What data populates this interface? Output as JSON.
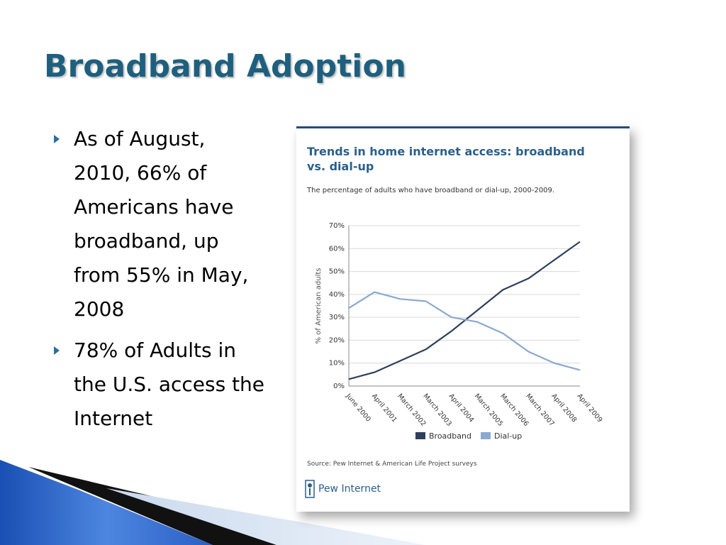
{
  "slide": {
    "title": "Broadband Adoption",
    "bullets": [
      "As of August, 2010, 66% of Americans have broadband, up from 55% in May, 2008",
      "78% of Adults in the U.S. access the Internet"
    ],
    "accent_color": "#1f5f7e"
  },
  "chart_data": {
    "type": "line",
    "title": "Trends in home internet access: broadband vs. dial-up",
    "subtitle": "The percentage of adults who have broadband or dial-up, 2000-2009.",
    "ylabel": "% of American adults",
    "xlabel": "",
    "categories": [
      "June 2000",
      "April 2001",
      "March 2002",
      "March 2003",
      "April 2004",
      "March 2005",
      "March 2006",
      "March 2007",
      "April 2008",
      "April 2009"
    ],
    "y_ticks": [
      "0%",
      "10%",
      "20%",
      "30%",
      "40%",
      "50%",
      "60%",
      "70%"
    ],
    "ylim": [
      0,
      70
    ],
    "series": [
      {
        "name": "Broadband",
        "color": "#2e3f5c",
        "values": [
          3,
          6,
          11,
          16,
          24,
          33,
          42,
          47,
          55,
          63
        ]
      },
      {
        "name": "Dial-up",
        "color": "#8aa9cf",
        "values": [
          34,
          41,
          38,
          37,
          30,
          28,
          23,
          15,
          10,
          7
        ]
      }
    ],
    "legend_position": "bottom",
    "grid": true,
    "source": "Source: Pew Internet & American Life Project surveys",
    "logo_text": "Pew Internet",
    "logo_tagline": "Pew Internet & American Life Project"
  }
}
